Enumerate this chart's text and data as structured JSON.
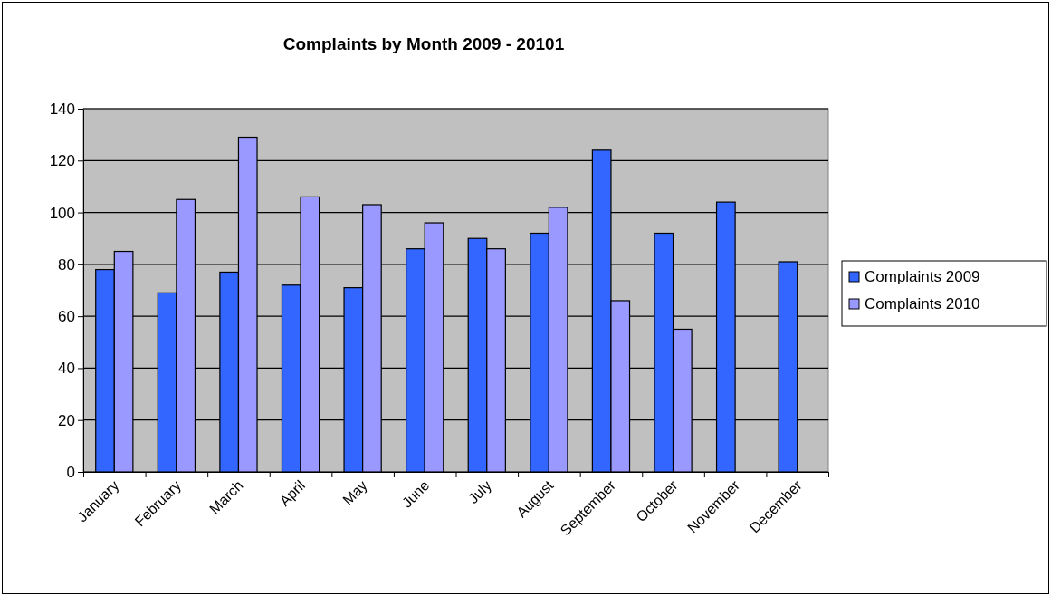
{
  "chart_data": {
    "type": "bar",
    "title": "Complaints by Month 2009 - 20101",
    "categories": [
      "January",
      "February",
      "March",
      "April",
      "May",
      "June",
      "July",
      "August",
      "September",
      "October",
      "November",
      "December"
    ],
    "series": [
      {
        "name": "Complaints 2009",
        "color": "#3366ff",
        "values": [
          78,
          69,
          77,
          72,
          71,
          86,
          90,
          92,
          124,
          92,
          104,
          81
        ]
      },
      {
        "name": "Complaints 2010",
        "color": "#9999ff",
        "values": [
          85,
          105,
          129,
          106,
          103,
          96,
          86,
          102,
          66,
          55,
          null,
          null
        ]
      }
    ],
    "ylim": [
      0,
      140
    ],
    "yticks": [
      0,
      20,
      40,
      60,
      80,
      100,
      120,
      140
    ],
    "grid": "y",
    "legend": "right"
  }
}
